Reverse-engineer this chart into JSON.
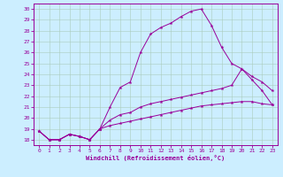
{
  "xlabel": "Windchill (Refroidissement éolien,°C)",
  "bg_color": "#cceeff",
  "line_color": "#990099",
  "grid_color": "#aaccbb",
  "xlim": [
    -0.5,
    23.5
  ],
  "ylim": [
    17.5,
    30.5
  ],
  "yticks": [
    18,
    19,
    20,
    21,
    22,
    23,
    24,
    25,
    26,
    27,
    28,
    29,
    30
  ],
  "xticks": [
    0,
    1,
    2,
    3,
    4,
    5,
    6,
    7,
    8,
    9,
    10,
    11,
    12,
    13,
    14,
    15,
    16,
    17,
    18,
    19,
    20,
    21,
    22,
    23
  ],
  "curve1_x": [
    0,
    1,
    2,
    3,
    4,
    5,
    6,
    7,
    8,
    9,
    10,
    11,
    12,
    13,
    14,
    15,
    16,
    17,
    18,
    19,
    20,
    21,
    22,
    23
  ],
  "curve1_y": [
    18.8,
    18.0,
    18.0,
    18.5,
    18.3,
    18.0,
    19.0,
    21.0,
    22.8,
    23.3,
    26.0,
    27.7,
    28.3,
    28.7,
    29.3,
    29.8,
    30.0,
    28.5,
    26.5,
    25.0,
    24.5,
    23.5,
    22.5,
    21.2
  ],
  "curve2_x": [
    0,
    1,
    2,
    3,
    4,
    5,
    6,
    7,
    8,
    9,
    10,
    11,
    12,
    13,
    14,
    15,
    16,
    17,
    18,
    19,
    20,
    21,
    22,
    23
  ],
  "curve2_y": [
    18.8,
    18.0,
    18.0,
    18.5,
    18.3,
    18.0,
    19.0,
    19.8,
    20.3,
    20.5,
    21.0,
    21.3,
    21.5,
    21.7,
    21.9,
    22.1,
    22.3,
    22.5,
    22.7,
    23.0,
    24.5,
    23.8,
    23.3,
    22.5
  ],
  "curve3_x": [
    0,
    1,
    2,
    3,
    4,
    5,
    6,
    7,
    8,
    9,
    10,
    11,
    12,
    13,
    14,
    15,
    16,
    17,
    18,
    19,
    20,
    21,
    22,
    23
  ],
  "curve3_y": [
    18.8,
    18.0,
    18.0,
    18.5,
    18.3,
    18.0,
    19.0,
    19.3,
    19.5,
    19.7,
    19.9,
    20.1,
    20.3,
    20.5,
    20.7,
    20.9,
    21.1,
    21.2,
    21.3,
    21.4,
    21.5,
    21.5,
    21.3,
    21.2
  ]
}
